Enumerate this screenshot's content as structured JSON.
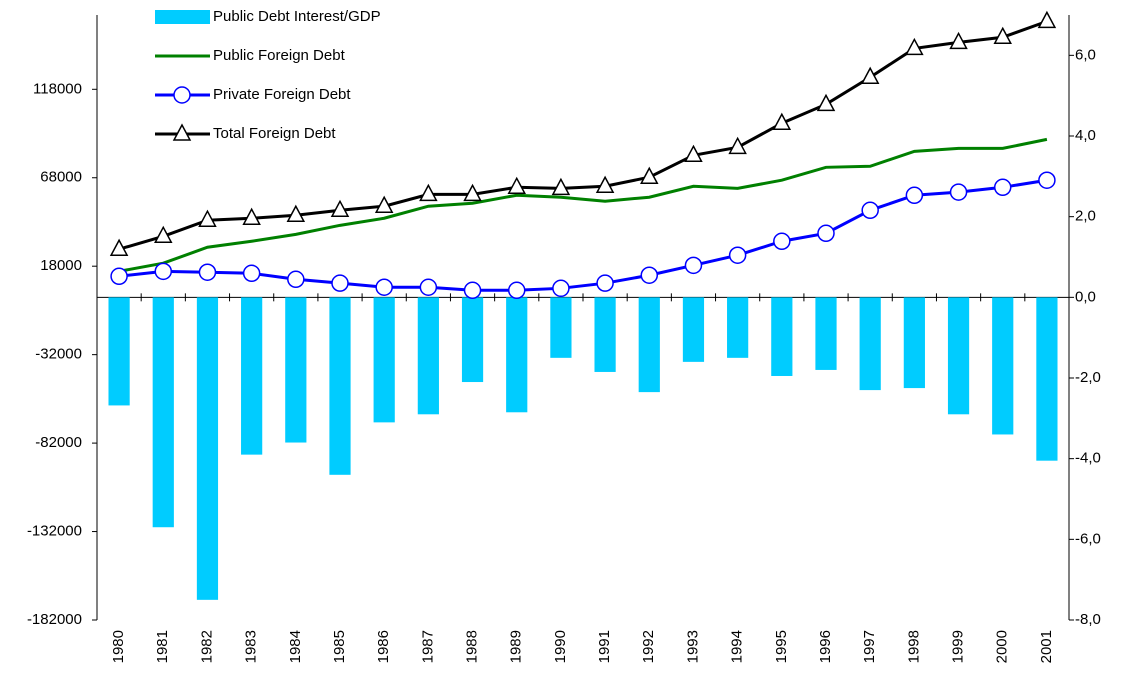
{
  "chart_data": {
    "type": "bar-line",
    "categories": [
      "1980",
      "1981",
      "1982",
      "1983",
      "1984",
      "1985",
      "1986",
      "1987",
      "1988",
      "1989",
      "1990",
      "1991",
      "1992",
      "1993",
      "1994",
      "1995",
      "1996",
      "1997",
      "1998",
      "1999",
      "2000",
      "2001"
    ],
    "series": [
      {
        "name": "Public Debt Interest/GDP",
        "type": "bar",
        "axis": "y2",
        "color": "#00ccff",
        "values": [
          -2.68,
          -5.7,
          -7.5,
          -3.9,
          -3.6,
          -4.4,
          -3.1,
          -2.9,
          -2.1,
          -2.85,
          -1.5,
          -1.85,
          -2.35,
          -1.6,
          -1.5,
          -1.95,
          -1.8,
          -2.3,
          -2.25,
          -2.9,
          -3.4,
          -4.05
        ]
      },
      {
        "name": "Public Foreign Debt",
        "type": "line",
        "color": "#008000",
        "values": [
          15100,
          19700,
          28700,
          32100,
          36000,
          41100,
          45100,
          51900,
          53600,
          58100,
          57000,
          54700,
          57000,
          63200,
          62000,
          66600,
          73900,
          74500,
          82900,
          84600,
          84600,
          89700
        ]
      },
      {
        "name": "Private Foreign Debt",
        "type": "line",
        "color": "#0000ff",
        "marker": "circle",
        "values": [
          12300,
          15100,
          14600,
          14000,
          10600,
          8400,
          6100,
          6100,
          4400,
          4400,
          5500,
          8400,
          12900,
          18500,
          24200,
          32100,
          36600,
          49600,
          58100,
          59900,
          62600,
          66600
        ]
      },
      {
        "name": "Total Foreign Debt",
        "type": "line",
        "color": "#000000",
        "marker": "triangle",
        "values": [
          27600,
          34900,
          44000,
          45100,
          46800,
          49600,
          51900,
          58600,
          58600,
          62600,
          62000,
          63200,
          68300,
          80700,
          85200,
          98800,
          109500,
          124800,
          141100,
          144500,
          147400,
          156400
        ]
      }
    ],
    "ylim": [
      -182000,
      160000
    ],
    "yticks": [
      118000,
      68000,
      18000,
      -32000,
      -82000,
      -132000,
      -182000
    ],
    "y2lim": [
      -8,
      7
    ],
    "y2ticks": [
      {
        "value": 6,
        "label": "6,0"
      },
      {
        "value": 4,
        "label": "4,0"
      },
      {
        "value": 2,
        "label": "2,0"
      },
      {
        "value": 0,
        "label": "0,0"
      },
      {
        "value": -2,
        "label": "-2,0"
      },
      {
        "value": -4,
        "label": "-4,0"
      },
      {
        "value": -6,
        "label": "-6,0"
      },
      {
        "value": -8,
        "label": "-8,0"
      }
    ]
  }
}
